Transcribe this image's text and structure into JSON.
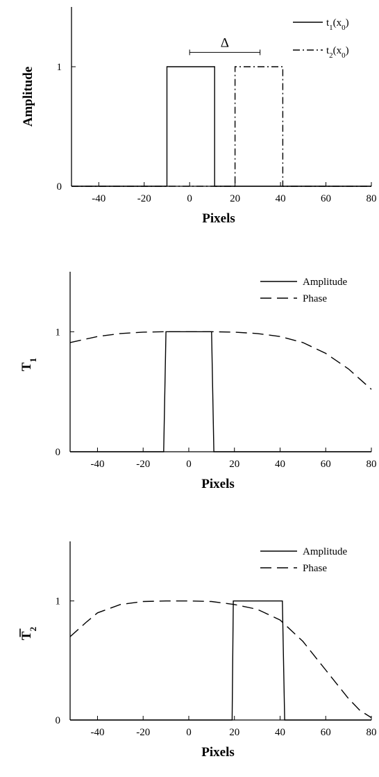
{
  "chart_data": [
    {
      "type": "line",
      "xlabel": "Pixels",
      "ylabel": "Amplitude",
      "xlim": [
        -52,
        80
      ],
      "ylim": [
        0,
        1.5
      ],
      "xticks": [
        -40,
        -20,
        0,
        20,
        40,
        60,
        80
      ],
      "xtick_labels": [
        "-40",
        "-20",
        "0",
        "20",
        "40",
        "60",
        "80"
      ],
      "yticks": [
        0,
        1
      ],
      "ytick_labels": [
        "0",
        "1"
      ],
      "legend": "top-right",
      "annotation": {
        "text": "Δ",
        "x_from": 0,
        "x_to": 31,
        "y": 1.12
      },
      "series": [
        {
          "name": "t1(x0)",
          "style": "solid",
          "x": [
            -52,
            -10,
            -10,
            11,
            11,
            80
          ],
          "y": [
            0,
            0,
            1,
            1,
            0,
            0
          ]
        },
        {
          "name": "t2(x0)",
          "style": "dashdot",
          "x": [
            -52,
            20,
            20,
            41,
            41,
            80
          ],
          "y": [
            0,
            0,
            1,
            1,
            0,
            0
          ]
        }
      ]
    },
    {
      "type": "line",
      "xlabel": "Pixels",
      "ylabel": "T1",
      "xlim": [
        -52,
        80
      ],
      "ylim": [
        0,
        1.5
      ],
      "xticks": [
        -40,
        -20,
        0,
        20,
        40,
        60,
        80
      ],
      "xtick_labels": [
        "-40",
        "-20",
        "0",
        "20",
        "40",
        "60",
        "80"
      ],
      "yticks": [
        0,
        1
      ],
      "ytick_labels": [
        "0",
        "1"
      ],
      "legend": "top-right",
      "series": [
        {
          "name": "Amplitude",
          "style": "solid",
          "x": [
            -52,
            -11,
            -10,
            10,
            11,
            80
          ],
          "y": [
            0,
            0,
            1,
            1,
            0,
            0
          ]
        },
        {
          "name": "Phase",
          "style": "dashed",
          "x": [
            -52,
            -40,
            -30,
            -20,
            -10,
            0,
            10,
            20,
            30,
            40,
            50,
            60,
            70,
            80
          ],
          "y": [
            0.91,
            0.96,
            0.985,
            0.997,
            1.0,
            1.0,
            1.0,
            0.997,
            0.985,
            0.96,
            0.91,
            0.82,
            0.69,
            0.52
          ]
        }
      ]
    },
    {
      "type": "line",
      "xlabel": "Pixels",
      "ylabel": "T2",
      "xlim": [
        -52,
        80
      ],
      "ylim": [
        0,
        1.5
      ],
      "xticks": [
        -40,
        -20,
        0,
        20,
        40,
        60,
        80
      ],
      "xtick_labels": [
        "-40",
        "-20",
        "0",
        "20",
        "40",
        "60",
        "80"
      ],
      "yticks": [
        0,
        1
      ],
      "ytick_labels": [
        "0",
        "1"
      ],
      "legend": "top-right",
      "series": [
        {
          "name": "Amplitude",
          "style": "solid",
          "x": [
            -52,
            19,
            19.5,
            41,
            42,
            80
          ],
          "y": [
            0,
            0,
            1,
            1,
            0,
            0
          ]
        },
        {
          "name": "Phase",
          "style": "dashed",
          "x": [
            -52,
            -45,
            -40,
            -30,
            -20,
            -10,
            0,
            10,
            20,
            30,
            40,
            50,
            60,
            70,
            75,
            80
          ],
          "y": [
            0.7,
            0.82,
            0.9,
            0.97,
            0.995,
            1.0,
            1.0,
            0.995,
            0.97,
            0.93,
            0.84,
            0.66,
            0.42,
            0.18,
            0.08,
            0.02
          ]
        }
      ]
    }
  ]
}
